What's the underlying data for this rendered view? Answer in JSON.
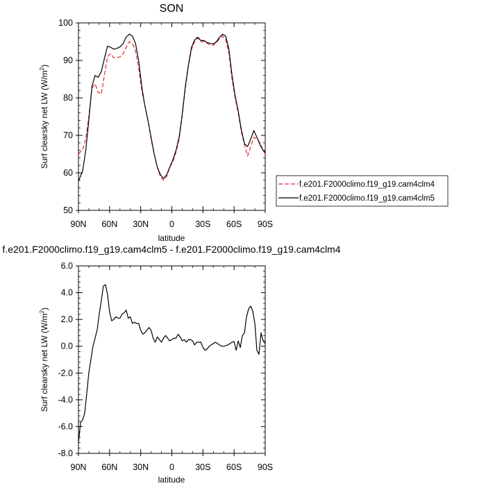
{
  "chart_data": [
    {
      "type": "line",
      "title": "SON",
      "xlabel": "latitude",
      "ylabel_main": "Surf clearsky net LW (W/m",
      "ylabel_sup": "2",
      "ylabel_close": ")",
      "xlim": [
        90,
        -90
      ],
      "ylim": [
        50,
        100
      ],
      "x_ticks": [
        90,
        60,
        30,
        0,
        -30,
        -60,
        -90
      ],
      "x_tick_labels": [
        "90N",
        "60N",
        "30N",
        "0",
        "30S",
        "60S",
        "90S"
      ],
      "y_ticks": [
        50,
        60,
        70,
        80,
        90,
        100
      ],
      "y_tick_labels": [
        "50",
        "60",
        "70",
        "80",
        "90",
        "100"
      ],
      "legend_placement": "right",
      "series": [
        {
          "name": "f.e201.F2000climo.f19_g19.cam4clm4",
          "color": "#e8262b",
          "dash": "dashed",
          "x": [
            90,
            86,
            83,
            80,
            77,
            74,
            71,
            68,
            65,
            62,
            59,
            56,
            53,
            50,
            47,
            44,
            41,
            38,
            35,
            32,
            29,
            26,
            23,
            20,
            17,
            14,
            11,
            8,
            5,
            2,
            -1,
            -4,
            -7,
            -10,
            -13,
            -16,
            -19,
            -22,
            -25,
            -28,
            -31,
            -34,
            -37,
            -40,
            -43,
            -46,
            -49,
            -52,
            -55,
            -58,
            -61,
            -64,
            -67,
            -70,
            -73,
            -76,
            -79,
            -82,
            -85,
            -88,
            -90
          ],
          "y": [
            65.0,
            66.2,
            69.0,
            75.0,
            82.5,
            83.8,
            81.5,
            81.0,
            86.0,
            91.0,
            91.8,
            90.7,
            90.8,
            90.9,
            91.8,
            93.5,
            95.0,
            94.6,
            92.5,
            88.0,
            82.0,
            78.0,
            74.0,
            69.0,
            65.0,
            61.5,
            59.0,
            58.0,
            59.0,
            61.5,
            63.0,
            65.5,
            69.0,
            75.0,
            82.5,
            88.5,
            93.0,
            95.0,
            96.0,
            95.0,
            95.0,
            94.5,
            94.2,
            94.0,
            94.8,
            95.8,
            96.5,
            95.5,
            92.0,
            85.0,
            80.0,
            76.0,
            71.0,
            67.5,
            64.5,
            67.0,
            69.5,
            69.0,
            68.0,
            66.0,
            65.0
          ]
        },
        {
          "name": "f.e201.F2000climo.f19_g19.cam4clm5",
          "color": "#000000",
          "dash": "solid",
          "x": [
            90,
            86,
            83,
            80,
            77,
            74,
            71,
            68,
            65,
            62,
            59,
            56,
            53,
            50,
            47,
            44,
            41,
            38,
            35,
            32,
            29,
            26,
            23,
            20,
            17,
            14,
            11,
            8,
            5,
            2,
            -1,
            -4,
            -7,
            -10,
            -13,
            -16,
            -19,
            -22,
            -25,
            -28,
            -31,
            -34,
            -37,
            -40,
            -43,
            -46,
            -49,
            -52,
            -55,
            -58,
            -61,
            -64,
            -67,
            -70,
            -73,
            -76,
            -79,
            -82,
            -85,
            -88,
            -90
          ],
          "y": [
            57.8,
            60.5,
            66.0,
            74.0,
            83.0,
            86.0,
            85.5,
            87.0,
            90.5,
            93.8,
            93.5,
            93.0,
            93.2,
            93.6,
            94.5,
            96.2,
            97.0,
            96.5,
            94.5,
            90.0,
            83.0,
            78.0,
            74.0,
            69.5,
            65.0,
            61.5,
            59.5,
            58.5,
            59.5,
            61.5,
            63.5,
            66.0,
            69.5,
            75.5,
            83.0,
            88.8,
            93.5,
            95.5,
            96.2,
            95.3,
            95.3,
            94.8,
            94.5,
            94.4,
            95.0,
            96.2,
            97.0,
            96.4,
            93.0,
            86.0,
            80.5,
            76.5,
            71.5,
            67.8,
            67.0,
            69.0,
            71.3,
            69.5,
            67.5,
            66.0,
            65.5
          ]
        }
      ]
    },
    {
      "type": "line",
      "title": "f.e201.F2000climo.f19_g19.cam4clm5 - f.e201.F2000climo.f19_g19.cam4clm4",
      "xlabel": "latitude",
      "ylabel_main": "Surf clearsky net LW (W/m",
      "ylabel_sup": "2",
      "ylabel_close": ")",
      "xlim": [
        90,
        -90
      ],
      "ylim": [
        -8,
        6
      ],
      "x_ticks": [
        90,
        60,
        30,
        0,
        -30,
        -60,
        -90
      ],
      "x_tick_labels": [
        "90N",
        "60N",
        "30N",
        "0",
        "30S",
        "60S",
        "90S"
      ],
      "y_ticks": [
        -8,
        -6,
        -4,
        -2,
        0,
        2,
        4,
        6
      ],
      "y_tick_labels": [
        "-8.0",
        "-6.0",
        "-4.0",
        "-2.0",
        "0.0",
        "2.0",
        "4.0",
        "6.0"
      ],
      "series": [
        {
          "color": "#000000",
          "dash": "solid",
          "x": [
            90,
            88,
            86,
            84,
            82,
            80,
            78,
            76,
            74,
            72,
            70,
            68,
            66,
            64,
            62,
            60,
            58,
            56,
            54,
            52,
            50,
            48,
            46,
            44,
            42,
            40,
            38,
            36,
            34,
            32,
            30,
            28,
            26,
            24,
            22,
            20,
            18,
            16,
            14,
            12,
            10,
            8,
            6,
            4,
            2,
            0,
            -2,
            -4,
            -6,
            -8,
            -10,
            -12,
            -14,
            -16,
            -18,
            -20,
            -22,
            -24,
            -26,
            -28,
            -30,
            -32,
            -34,
            -36,
            -38,
            -40,
            -42,
            -44,
            -46,
            -48,
            -50,
            -52,
            -54,
            -56,
            -58,
            -60,
            -62,
            -64,
            -66,
            -68,
            -70,
            -72,
            -74,
            -76,
            -78,
            -80,
            -82,
            -84,
            -86,
            -88,
            -90
          ],
          "y": [
            -7.2,
            -5.7,
            -5.5,
            -5.0,
            -3.5,
            -2.0,
            -1.0,
            0.0,
            0.6,
            1.2,
            2.4,
            3.4,
            4.5,
            4.6,
            3.9,
            2.6,
            1.9,
            2.0,
            2.2,
            2.1,
            2.1,
            2.4,
            2.5,
            2.7,
            2.1,
            2.2,
            1.7,
            1.8,
            1.7,
            1.7,
            1.2,
            0.9,
            1.0,
            1.2,
            1.4,
            1.2,
            0.6,
            0.3,
            0.7,
            0.5,
            0.3,
            0.6,
            0.8,
            0.6,
            0.4,
            0.5,
            0.6,
            0.6,
            0.9,
            0.7,
            0.4,
            0.5,
            0.3,
            0.5,
            0.5,
            0.4,
            0.1,
            0.3,
            0.3,
            0.3,
            -0.1,
            -0.3,
            -0.2,
            0.0,
            0.1,
            0.2,
            0.3,
            0.2,
            0.1,
            0.0,
            0.0,
            0.05,
            0.1,
            0.2,
            0.3,
            0.35,
            -0.3,
            0.4,
            -0.1,
            0.8,
            1.0,
            2.2,
            2.8,
            3.0,
            2.6,
            1.7,
            -0.3,
            -0.6,
            1.0,
            0.4,
            0.2
          ]
        }
      ]
    }
  ]
}
